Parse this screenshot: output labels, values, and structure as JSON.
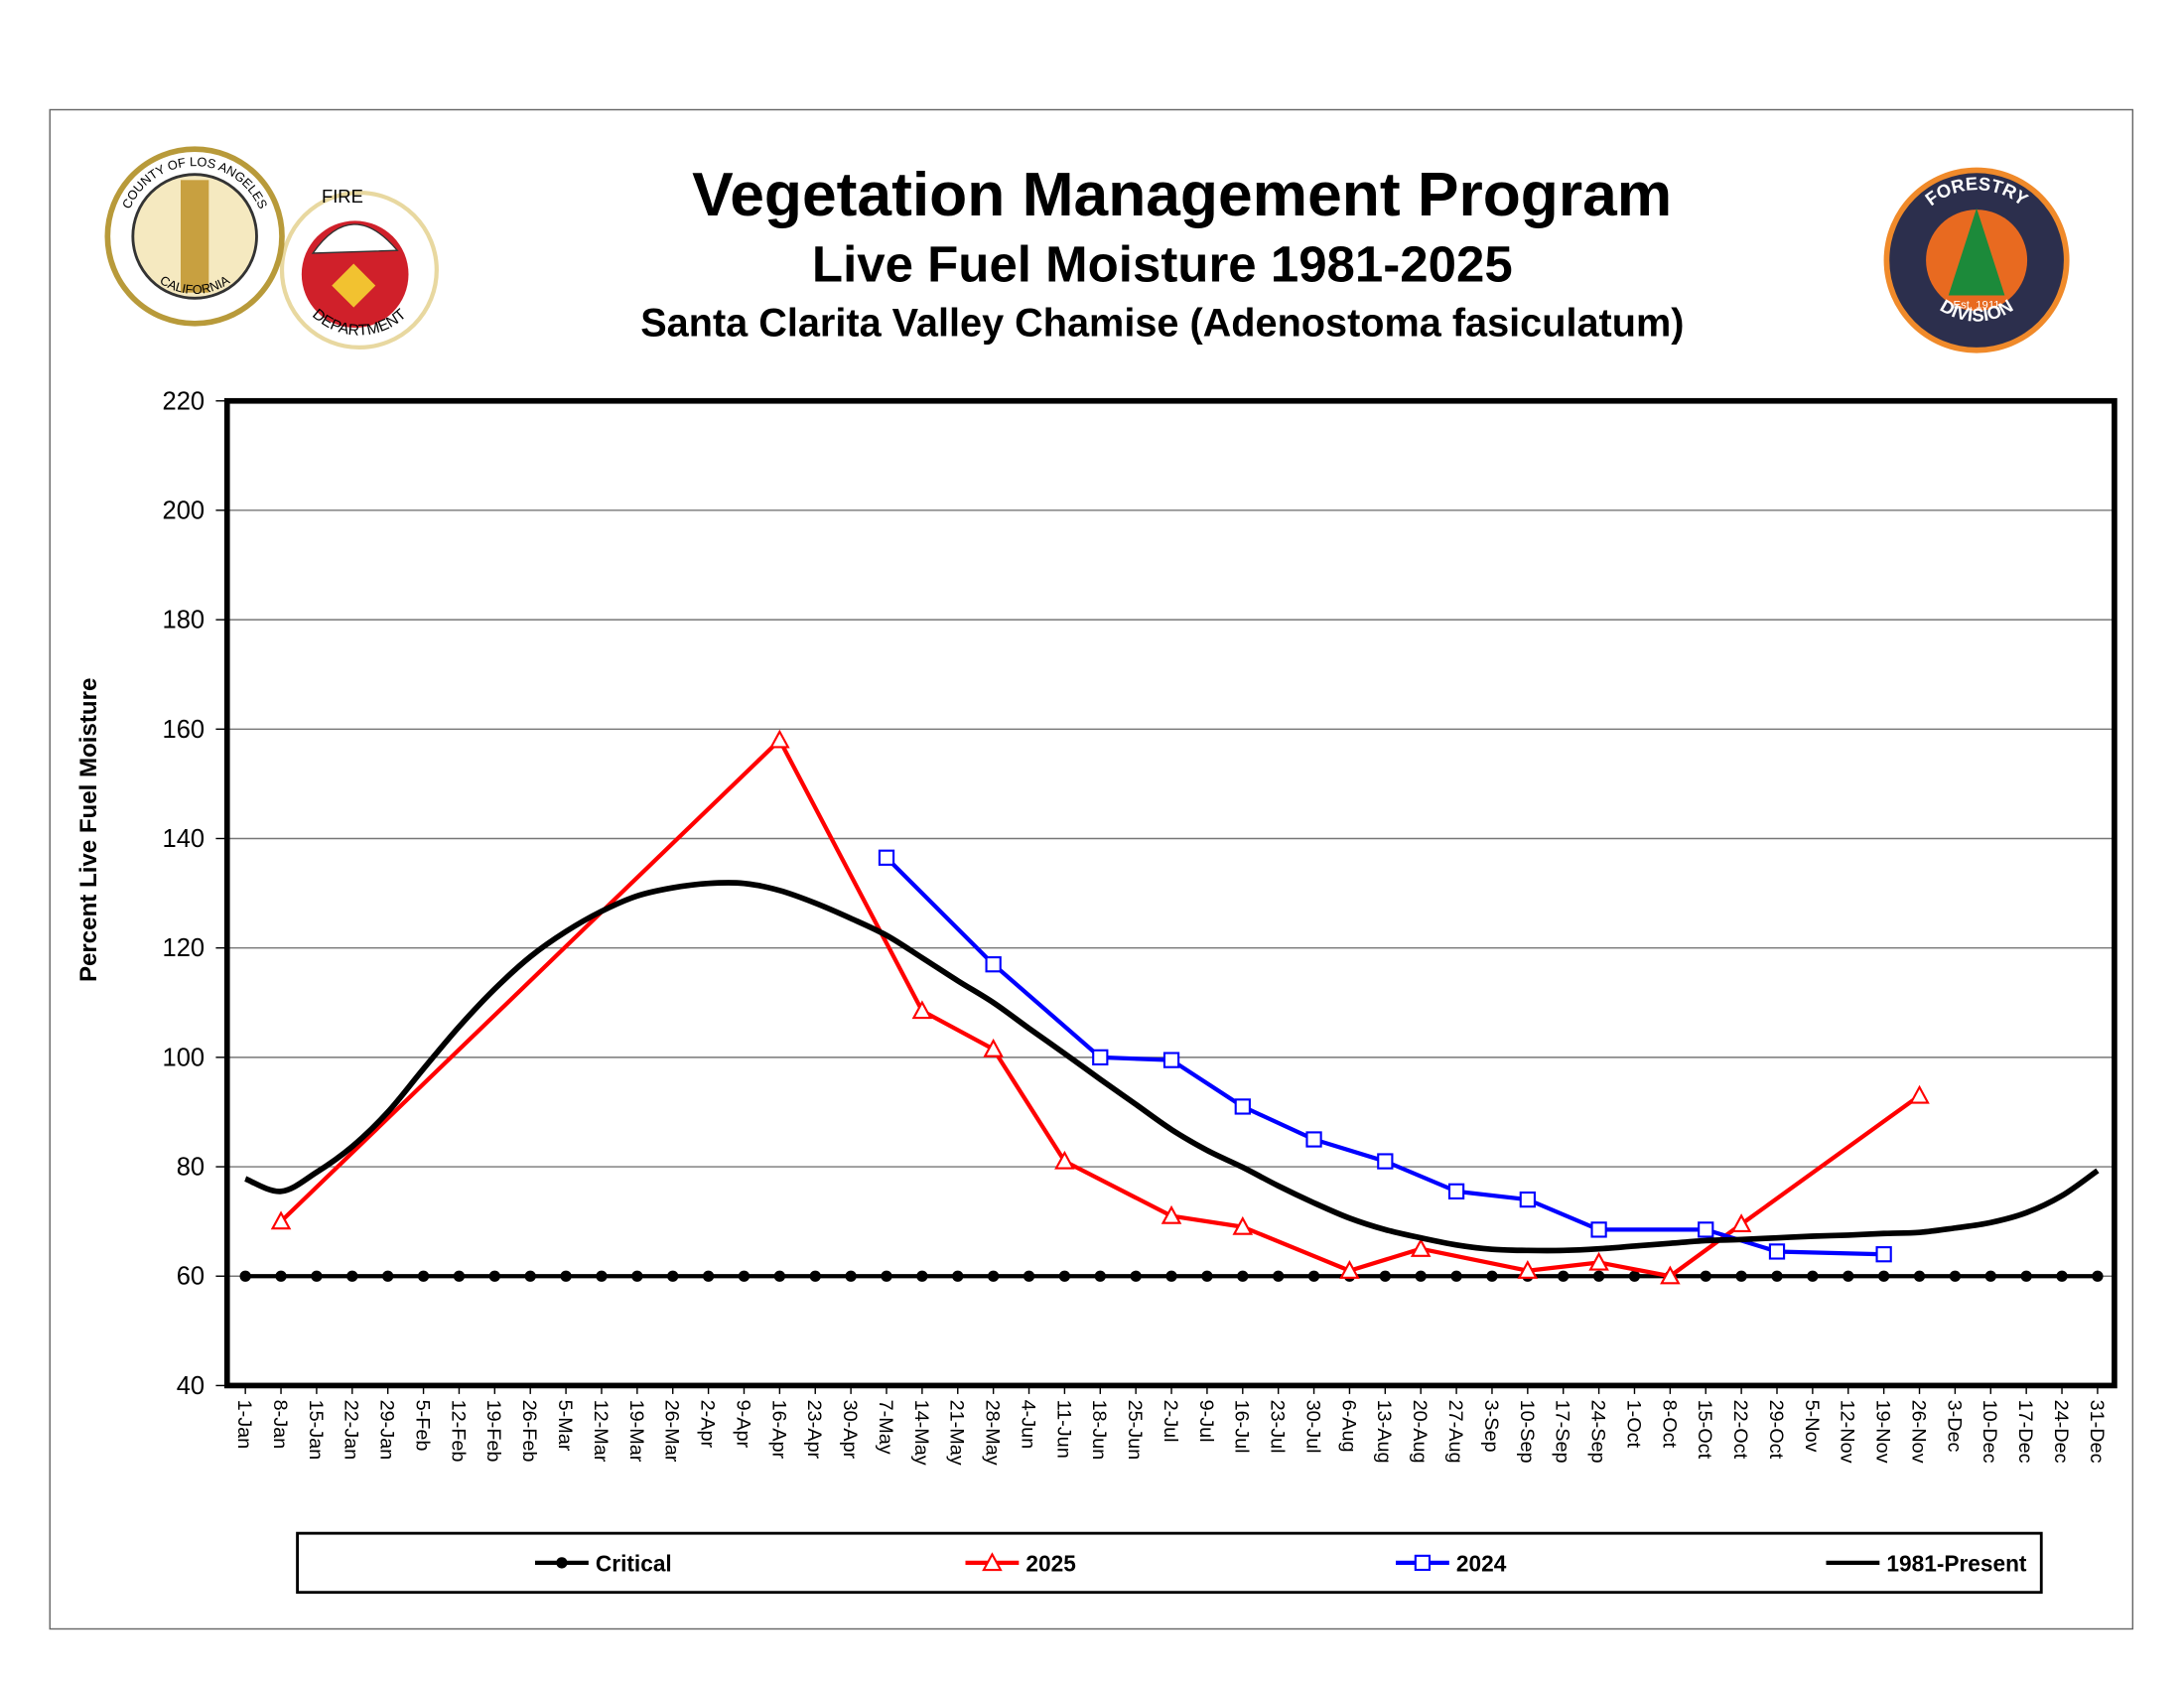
{
  "chart_data": {
    "type": "line",
    "title": "Vegetation Management Program",
    "subtitle": "Live Fuel Moisture 1981-2025",
    "subtitle2": "Santa Clarita Valley Chamise (Adenostoma fasiculatum)",
    "y_label": "Percent Live Fuel Moisture",
    "categories": [
      "1-Jan",
      "8-Jan",
      "15-Jan",
      "22-Jan",
      "29-Jan",
      "5-Feb",
      "12-Feb",
      "19-Feb",
      "26-Feb",
      "5-Mar",
      "12-Mar",
      "19-Mar",
      "26-Mar",
      "2-Apr",
      "9-Apr",
      "16-Apr",
      "23-Apr",
      "30-Apr",
      "7-May",
      "14-May",
      "21-May",
      "28-May",
      "4-Jun",
      "11-Jun",
      "18-Jun",
      "25-Jun",
      "2-Jul",
      "9-Jul",
      "16-Jul",
      "23-Jul",
      "30-Jul",
      "6-Aug",
      "13-Aug",
      "20-Aug",
      "27-Aug",
      "3-Sep",
      "10-Sep",
      "17-Sep",
      "24-Sep",
      "1-Oct",
      "8-Oct",
      "15-Oct",
      "22-Oct",
      "29-Oct",
      "5-Nov",
      "12-Nov",
      "19-Nov",
      "26-Nov",
      "3-Dec",
      "10-Dec",
      "17-Dec",
      "24-Dec",
      "31-Dec"
    ],
    "ylim": [
      40,
      220
    ],
    "yticks": [
      40,
      60,
      80,
      100,
      120,
      140,
      160,
      180,
      200,
      220
    ],
    "grid": true,
    "legend": "bottom",
    "series": [
      {
        "name": "Critical",
        "color": "#000000",
        "marker": "circle",
        "values": [
          60,
          60,
          60,
          60,
          60,
          60,
          60,
          60,
          60,
          60,
          60,
          60,
          60,
          60,
          60,
          60,
          60,
          60,
          60,
          60,
          60,
          60,
          60,
          60,
          60,
          60,
          60,
          60,
          60,
          60,
          60,
          60,
          60,
          60,
          60,
          60,
          60,
          60,
          60,
          60,
          60,
          60,
          60,
          60,
          60,
          60,
          60,
          60,
          60,
          60,
          60,
          60,
          60
        ]
      },
      {
        "name": "2025",
        "color": "#ff0000",
        "marker": "triangle",
        "x": [
          "8-Jan",
          "16-Apr",
          "14-May",
          "28-May",
          "11-Jun",
          "2-Jul",
          "16-Jul",
          "6-Aug",
          "20-Aug",
          "10-Sep",
          "24-Sep",
          "8-Oct",
          "22-Oct",
          "26-Nov"
        ],
        "values": [
          70,
          158,
          108.5,
          101.5,
          81,
          71,
          69,
          61,
          65,
          61,
          62.5,
          60,
          69.5,
          93
        ]
      },
      {
        "name": "2024",
        "color": "#0000ff",
        "marker": "square",
        "x": [
          "7-May",
          "28-May",
          "18-Jun",
          "2-Jul",
          "16-Jul",
          "30-Jul",
          "13-Aug",
          "27-Aug",
          "10-Sep",
          "24-Sep",
          "15-Oct",
          "29-Oct",
          "19-Nov"
        ],
        "values": [
          136.5,
          117,
          100,
          99.5,
          91,
          85,
          81,
          75.5,
          74,
          68.5,
          68.5,
          64.5,
          64
        ]
      },
      {
        "name": "1981-Present",
        "color": "#000000",
        "marker": null,
        "values": [
          77.8,
          75.5,
          79,
          83.7,
          90,
          97.9,
          105.6,
          112.5,
          118.4,
          123,
          126.7,
          129.5,
          131,
          131.8,
          131.8,
          130.5,
          128.2,
          125.4,
          122.3,
          118.2,
          114,
          110,
          105.3,
          100.7,
          96,
          91.4,
          86.8,
          83,
          79.9,
          76.5,
          73.4,
          70.6,
          68.5,
          67,
          65.7,
          64.9,
          64.7,
          64.7,
          65,
          65.5,
          66,
          66.5,
          66.7,
          67,
          67.3,
          67.5,
          67.8,
          68,
          68.8,
          69.8,
          71.6,
          74.7,
          79.3
        ]
      }
    ]
  },
  "logos": {
    "county": "COUNTY OF LOS ANGELES",
    "state": "CALIFORNIA",
    "fire": "FIRE",
    "department": "DEPARTMENT",
    "forestry": "FORESTRY",
    "division": "DIVISION",
    "established": "Est. 1911"
  }
}
